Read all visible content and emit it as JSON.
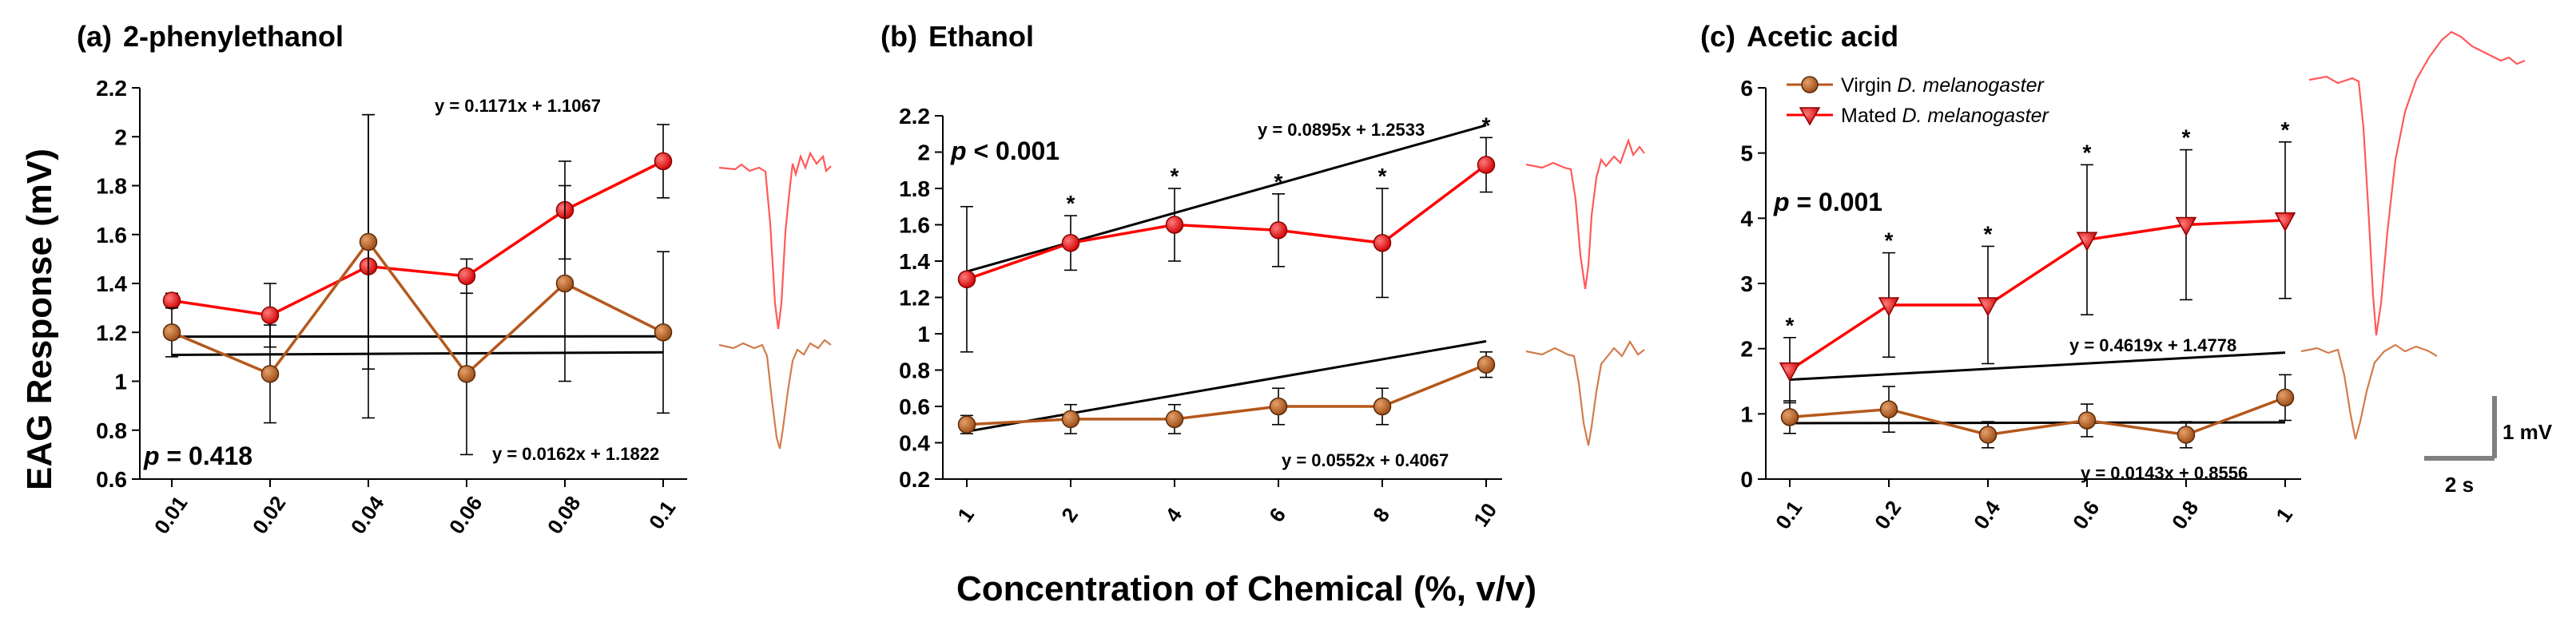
{
  "figure": {
    "y_label": "EAG Response (mV)",
    "x_label": "Concentration of Chemical (%, v/v)",
    "scale_bar": {
      "vertical_label": "1 mV",
      "horizontal_label": "2 s"
    },
    "legend": [
      {
        "name": "Virgin ",
        "species": "D. melanogaster",
        "marker": "circle",
        "color": "#b5581c"
      },
      {
        "name": "Mated ",
        "species": "D. melanogaster",
        "marker": "triangle-down",
        "color": "#ff0000"
      }
    ]
  },
  "chart_data": [
    {
      "type": "line",
      "panel": "(a)",
      "title": "2-phenylethanol",
      "categories": [
        "0.01",
        "0.02",
        "0.04",
        "0.06",
        "0.08",
        "0.1"
      ],
      "ylim": [
        0.6,
        2.2
      ],
      "yticks": [
        0.6,
        0.8,
        1.0,
        1.2,
        1.4,
        1.6,
        1.8,
        2.0,
        2.2
      ],
      "p_value": "p = 0.418",
      "series": [
        {
          "name": "Mated D. melanogaster",
          "marker": "circle",
          "values": [
            1.33,
            1.27,
            1.47,
            1.43,
            1.7,
            1.9
          ],
          "err": [
            0.03,
            0.13,
            0.62,
            0.07,
            0.2,
            0.15
          ],
          "fit": {
            "slope": 0.1171,
            "intercept": 1.1067,
            "label": "y = 0.1171x + 1.1067"
          },
          "asterisks": [
            false,
            false,
            false,
            false,
            false,
            false
          ]
        },
        {
          "name": "Virgin D. melanogaster",
          "marker": "circle",
          "values": [
            1.2,
            1.03,
            1.57,
            1.03,
            1.4,
            1.2
          ],
          "err": [
            0.1,
            0.2,
            0.52,
            0.33,
            0.4,
            0.33
          ],
          "fit": {
            "slope": 0.0162,
            "intercept": 1.1822,
            "label": "y = 0.0162x + 1.1822"
          },
          "asterisks": [
            false,
            false,
            false,
            false,
            false,
            false
          ]
        }
      ]
    },
    {
      "type": "line",
      "panel": "(b)",
      "title": "Ethanol",
      "categories": [
        "1",
        "2",
        "4",
        "6",
        "8",
        "10"
      ],
      "ylim": [
        0.2,
        2.2
      ],
      "yticks": [
        0.2,
        0.4,
        0.6,
        0.8,
        1.0,
        1.2,
        1.4,
        1.6,
        1.8,
        2.0,
        2.2
      ],
      "p_value": "p < 0.001",
      "series": [
        {
          "name": "Mated D. melanogaster",
          "marker": "circle",
          "values": [
            1.3,
            1.5,
            1.6,
            1.57,
            1.5,
            1.93
          ],
          "err": [
            0.4,
            0.15,
            0.2,
            0.2,
            0.3,
            0.15
          ],
          "fit": {
            "slope": 0.0895,
            "intercept": 1.2533,
            "label": "y = 0.0895x + 1.2533"
          },
          "asterisks": [
            false,
            true,
            true,
            true,
            true,
            true
          ]
        },
        {
          "name": "Virgin D. melanogaster",
          "marker": "circle",
          "values": [
            0.5,
            0.53,
            0.53,
            0.6,
            0.6,
            0.83
          ],
          "err": [
            0.05,
            0.08,
            0.08,
            0.1,
            0.1,
            0.07
          ],
          "fit": {
            "slope": 0.0552,
            "intercept": 0.4067,
            "label": "y = 0.0552x + 0.4067"
          },
          "asterisks": [
            false,
            false,
            false,
            false,
            false,
            false
          ]
        }
      ]
    },
    {
      "type": "line",
      "panel": "(c)",
      "title": "Acetic acid",
      "categories": [
        "0.1",
        "0.2",
        "0.4",
        "0.6",
        "0.8",
        "1"
      ],
      "ylim": [
        0,
        6
      ],
      "yticks": [
        0,
        1,
        2,
        3,
        4,
        5,
        6
      ],
      "p_value": "p = 0.001",
      "series": [
        {
          "name": "Mated D. melanogaster",
          "marker": "triangle-down",
          "values": [
            1.67,
            2.67,
            2.67,
            3.67,
            3.9,
            3.97
          ],
          "err": [
            0.5,
            0.8,
            0.9,
            1.15,
            1.15,
            1.2
          ],
          "fit": {
            "slope": 0.4619,
            "intercept": 1.4778,
            "label": "y = 0.4619x + 1.4778"
          },
          "asterisks": [
            true,
            true,
            true,
            true,
            true,
            true
          ]
        },
        {
          "name": "Virgin D. melanogaster",
          "marker": "circle",
          "values": [
            0.95,
            1.07,
            0.68,
            0.9,
            0.68,
            1.25
          ],
          "err": [
            0.25,
            0.35,
            0.2,
            0.25,
            0.2,
            0.35
          ],
          "fit": {
            "slope": 0.0143,
            "intercept": 0.8556,
            "label": "y = 0.0143x + 0.8556"
          },
          "asterisks": [
            false,
            false,
            false,
            false,
            false,
            false
          ]
        }
      ]
    }
  ]
}
